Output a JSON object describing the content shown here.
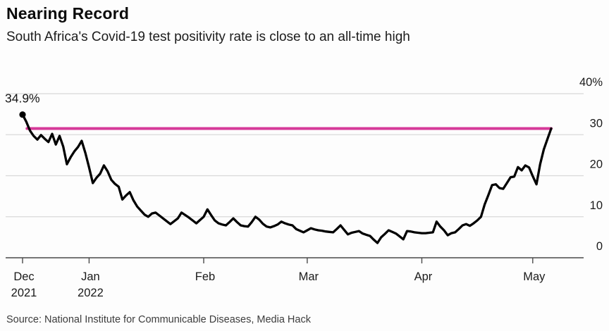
{
  "header": {
    "title": "Nearing Record",
    "subtitle": "South Africa's Covid-19 test positivity rate is close to an all-time high"
  },
  "footer": {
    "source": "Source: National Institute for Communicable Diseases, Media Hack"
  },
  "colors": {
    "accent_pink": "#d63a99",
    "line_black": "#000000",
    "grid_gray": "#d9d9d9",
    "axis_gray": "#4a4a4a"
  },
  "chart_data": {
    "type": "line",
    "title": "Nearing Record",
    "subtitle": "South Africa's Covid-19 test positivity rate is close to an all-time high",
    "unit": "%",
    "ylim": [
      0,
      40
    ],
    "grid": "horizontal",
    "legend": "none",
    "y_ticks": [
      {
        "label": "40%",
        "value": 40
      },
      {
        "label": "30",
        "value": 30
      },
      {
        "label": "20",
        "value": 20
      },
      {
        "label": "10",
        "value": 10
      },
      {
        "label": "0",
        "value": 0
      }
    ],
    "x_ticks": [
      {
        "label": "Dec",
        "sublabel": "2021",
        "day": 0
      },
      {
        "label": "Jan",
        "sublabel": "2022",
        "day": 18
      },
      {
        "label": "Feb",
        "sublabel": "",
        "day": 49
      },
      {
        "label": "Mar",
        "sublabel": "",
        "day": 77
      },
      {
        "label": "Apr",
        "sublabel": "",
        "day": 108
      },
      {
        "label": "May",
        "sublabel": "",
        "day": 138
      }
    ],
    "annotation": {
      "label": "34.9%",
      "day": 0,
      "value": 34.9
    },
    "record_line": {
      "value": 31.5,
      "start_day": 1.2,
      "end_day": 143
    },
    "series": [
      {
        "name": "Covid-19 test positivity rate",
        "points": [
          [
            0,
            34.9
          ],
          [
            1,
            33.2
          ],
          [
            2,
            31.0
          ],
          [
            3,
            29.7
          ],
          [
            4,
            28.8
          ],
          [
            5,
            29.9
          ],
          [
            6,
            29.0
          ],
          [
            7,
            28.2
          ],
          [
            8,
            30.2
          ],
          [
            9,
            27.6
          ],
          [
            10,
            29.7
          ],
          [
            11,
            27.1
          ],
          [
            12,
            22.8
          ],
          [
            13,
            24.5
          ],
          [
            14,
            25.9
          ],
          [
            15,
            27.0
          ],
          [
            16,
            28.5
          ],
          [
            17,
            25.5
          ],
          [
            18,
            22.0
          ],
          [
            19,
            18.2
          ],
          [
            20,
            19.5
          ],
          [
            21,
            20.5
          ],
          [
            22,
            22.5
          ],
          [
            23,
            21.1
          ],
          [
            24,
            19.0
          ],
          [
            25,
            18.0
          ],
          [
            26,
            17.3
          ],
          [
            27,
            14.2
          ],
          [
            28,
            15.2
          ],
          [
            29,
            16.0
          ],
          [
            30,
            14.0
          ],
          [
            31,
            12.5
          ],
          [
            32,
            11.5
          ],
          [
            33,
            10.5
          ],
          [
            34,
            10.0
          ],
          [
            35,
            10.8
          ],
          [
            36,
            11.0
          ],
          [
            37,
            10.3
          ],
          [
            38,
            9.6
          ],
          [
            39,
            8.9
          ],
          [
            40,
            8.2
          ],
          [
            41,
            8.9
          ],
          [
            42,
            9.6
          ],
          [
            43,
            11.0
          ],
          [
            44,
            10.4
          ],
          [
            45,
            9.8
          ],
          [
            46,
            9.1
          ],
          [
            47,
            8.4
          ],
          [
            48,
            9.2
          ],
          [
            49,
            10.0
          ],
          [
            50,
            11.8
          ],
          [
            51,
            10.4
          ],
          [
            52,
            9.1
          ],
          [
            53,
            8.4
          ],
          [
            54,
            8.1
          ],
          [
            55,
            7.9
          ],
          [
            56,
            8.7
          ],
          [
            57,
            9.6
          ],
          [
            58,
            8.7
          ],
          [
            59,
            7.9
          ],
          [
            60,
            7.7
          ],
          [
            61,
            7.6
          ],
          [
            62,
            8.7
          ],
          [
            63,
            10.0
          ],
          [
            64,
            9.3
          ],
          [
            65,
            8.3
          ],
          [
            66,
            7.6
          ],
          [
            67,
            7.4
          ],
          [
            68,
            7.7
          ],
          [
            69,
            8.1
          ],
          [
            70,
            8.8
          ],
          [
            71,
            8.4
          ],
          [
            72,
            8.1
          ],
          [
            73,
            7.9
          ],
          [
            74,
            7.0
          ],
          [
            75,
            6.6
          ],
          [
            76,
            6.2
          ],
          [
            77,
            6.7
          ],
          [
            78,
            7.2
          ],
          [
            79,
            6.9
          ],
          [
            80,
            6.7
          ],
          [
            81,
            6.6
          ],
          [
            82,
            6.4
          ],
          [
            83,
            6.3
          ],
          [
            84,
            6.2
          ],
          [
            85,
            7.0
          ],
          [
            86,
            7.9
          ],
          [
            87,
            6.8
          ],
          [
            88,
            5.7
          ],
          [
            89,
            6.1
          ],
          [
            90,
            6.3
          ],
          [
            91,
            6.5
          ],
          [
            92,
            5.9
          ],
          [
            93,
            5.6
          ],
          [
            94,
            5.3
          ],
          [
            95,
            4.4
          ],
          [
            96,
            3.6
          ],
          [
            97,
            5.0
          ],
          [
            98,
            5.8
          ],
          [
            99,
            6.7
          ],
          [
            100,
            6.3
          ],
          [
            101,
            5.9
          ],
          [
            102,
            5.2
          ],
          [
            103,
            4.5
          ],
          [
            104,
            6.5
          ],
          [
            105,
            6.4
          ],
          [
            106,
            6.2
          ],
          [
            107,
            6.1
          ],
          [
            108,
            6.0
          ],
          [
            109,
            6.0
          ],
          [
            110,
            6.1
          ],
          [
            111,
            6.2
          ],
          [
            112,
            8.8
          ],
          [
            113,
            7.6
          ],
          [
            114,
            6.7
          ],
          [
            115,
            5.5
          ],
          [
            116,
            6.0
          ],
          [
            117,
            6.2
          ],
          [
            118,
            7.0
          ],
          [
            119,
            7.9
          ],
          [
            120,
            8.2
          ],
          [
            121,
            7.8
          ],
          [
            122,
            8.4
          ],
          [
            123,
            9.1
          ],
          [
            124,
            10.0
          ],
          [
            125,
            13.0
          ],
          [
            126,
            15.3
          ],
          [
            127,
            17.7
          ],
          [
            128,
            17.9
          ],
          [
            129,
            17.0
          ],
          [
            130,
            16.8
          ],
          [
            131,
            18.2
          ],
          [
            132,
            19.6
          ],
          [
            133,
            19.8
          ],
          [
            134,
            22.1
          ],
          [
            135,
            21.3
          ],
          [
            136,
            22.5
          ],
          [
            137,
            22.0
          ],
          [
            138,
            19.9
          ],
          [
            139,
            17.9
          ],
          [
            140,
            22.8
          ],
          [
            141,
            26.4
          ],
          [
            142,
            29.0
          ],
          [
            143,
            31.5
          ]
        ]
      }
    ]
  }
}
